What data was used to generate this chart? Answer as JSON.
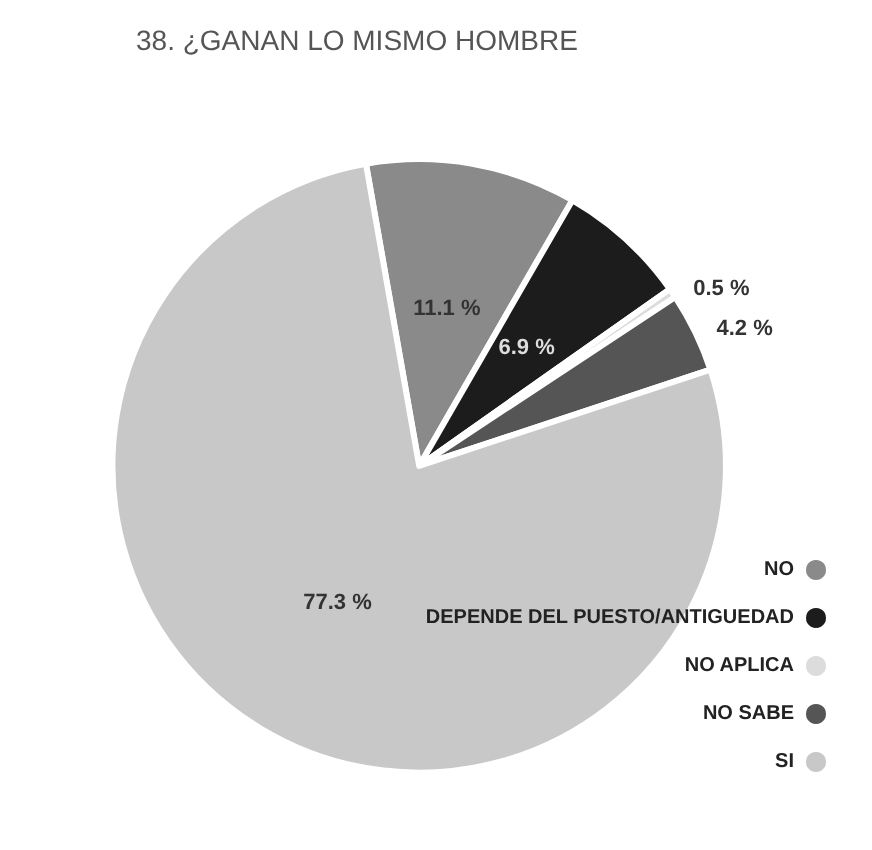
{
  "chart_data": {
    "type": "pie",
    "title": "38. ¿GANAN LO MISMO HOMBRE",
    "categories": [
      "NO",
      "DEPENDE DEL PUESTO/ANTIGUEDAD",
      "NO APLICA",
      "NO SABE",
      "SI"
    ],
    "values": [
      11.1,
      6.9,
      0.5,
      4.2,
      77.3
    ],
    "value_labels": [
      "11.1 %",
      "6.9 %",
      "0.5 %",
      "4.2 %",
      "77.3 %"
    ],
    "colors": [
      "#8a8a8a",
      "#1c1c1c",
      "#dcdcdc",
      "#555555",
      "#c8c8c8"
    ],
    "legend": "bottom right"
  }
}
